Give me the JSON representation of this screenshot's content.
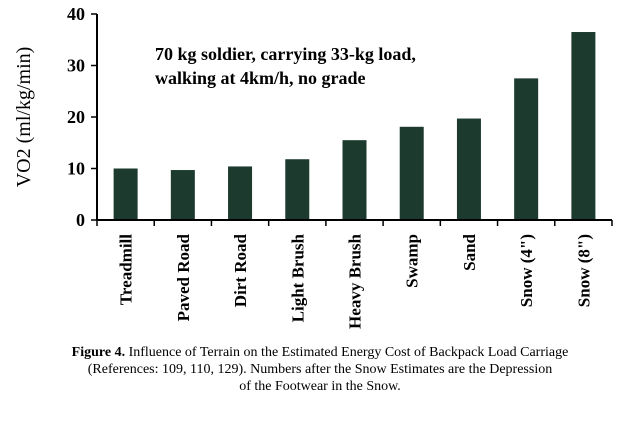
{
  "chart_data": {
    "type": "bar",
    "ylabel": "VO2 (ml/kg/min)",
    "xlabel": "",
    "ylim": [
      0,
      40
    ],
    "yticks": [
      0,
      10,
      20,
      30,
      40
    ],
    "categories": [
      "Treadmill",
      "Paved Road",
      "Dirt Road",
      "Light Brush",
      "Heavy Brush",
      "Swamp",
      "Sand",
      "Snow (4\")",
      "Snow (8\")"
    ],
    "values": [
      10.0,
      9.7,
      10.4,
      11.8,
      15.5,
      18.1,
      19.7,
      27.5,
      36.5
    ],
    "annotation_lines": [
      "70 kg soldier, carrying 33-kg load,",
      "walking at 4km/h, no grade"
    ],
    "bar_color": "#1c3a2e",
    "grid": false
  },
  "caption": {
    "label": "Figure 4.",
    "line1": "Influence of Terrain on the Estimated Energy Cost of Backpack Load Carriage",
    "line2": "(References: 109, 110, 129).  Numbers after the Snow Estimates are the Depression",
    "line3": "of the Footwear in the Snow."
  }
}
